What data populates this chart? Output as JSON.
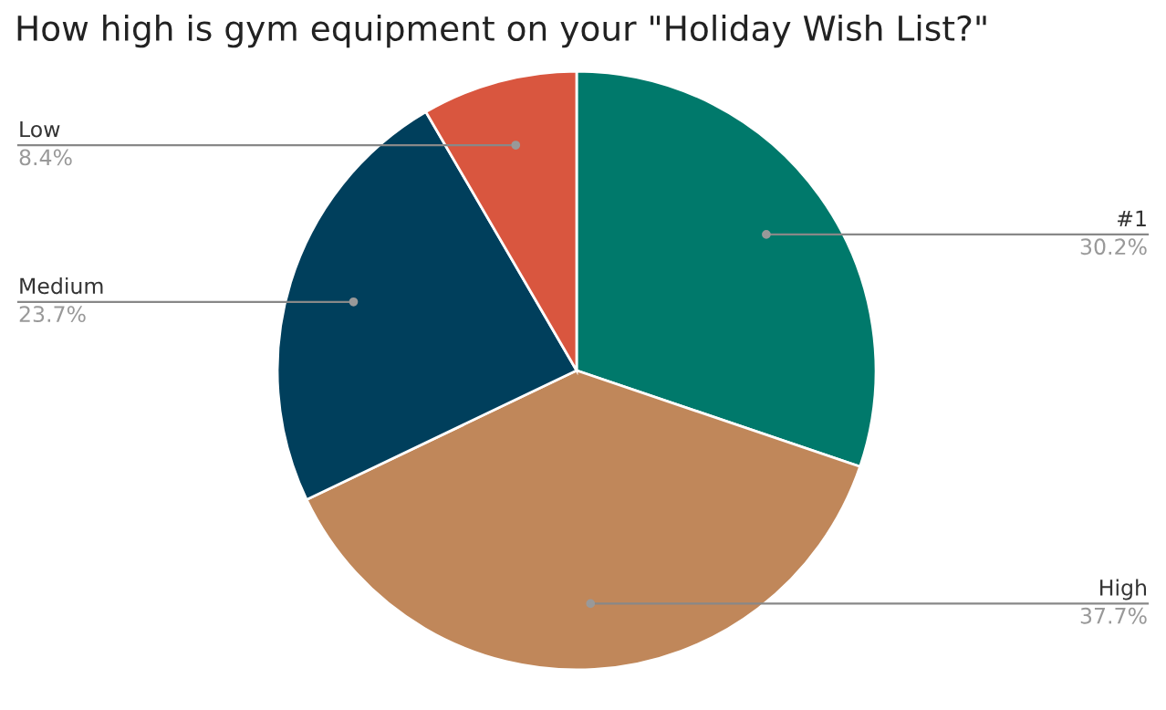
{
  "chart_data": {
    "type": "pie",
    "title": "How high is gym equipment on your \"Holiday Wish List?\"",
    "categories": [
      "#1",
      "High",
      "Medium",
      "Low"
    ],
    "values": [
      30.2,
      37.7,
      23.7,
      8.4
    ],
    "value_labels": [
      "30.2%",
      "37.7%",
      "23.7%",
      "8.4%"
    ],
    "colors": [
      "#00796b",
      "#c0875a",
      "#003f5c",
      "#d9563f"
    ]
  }
}
